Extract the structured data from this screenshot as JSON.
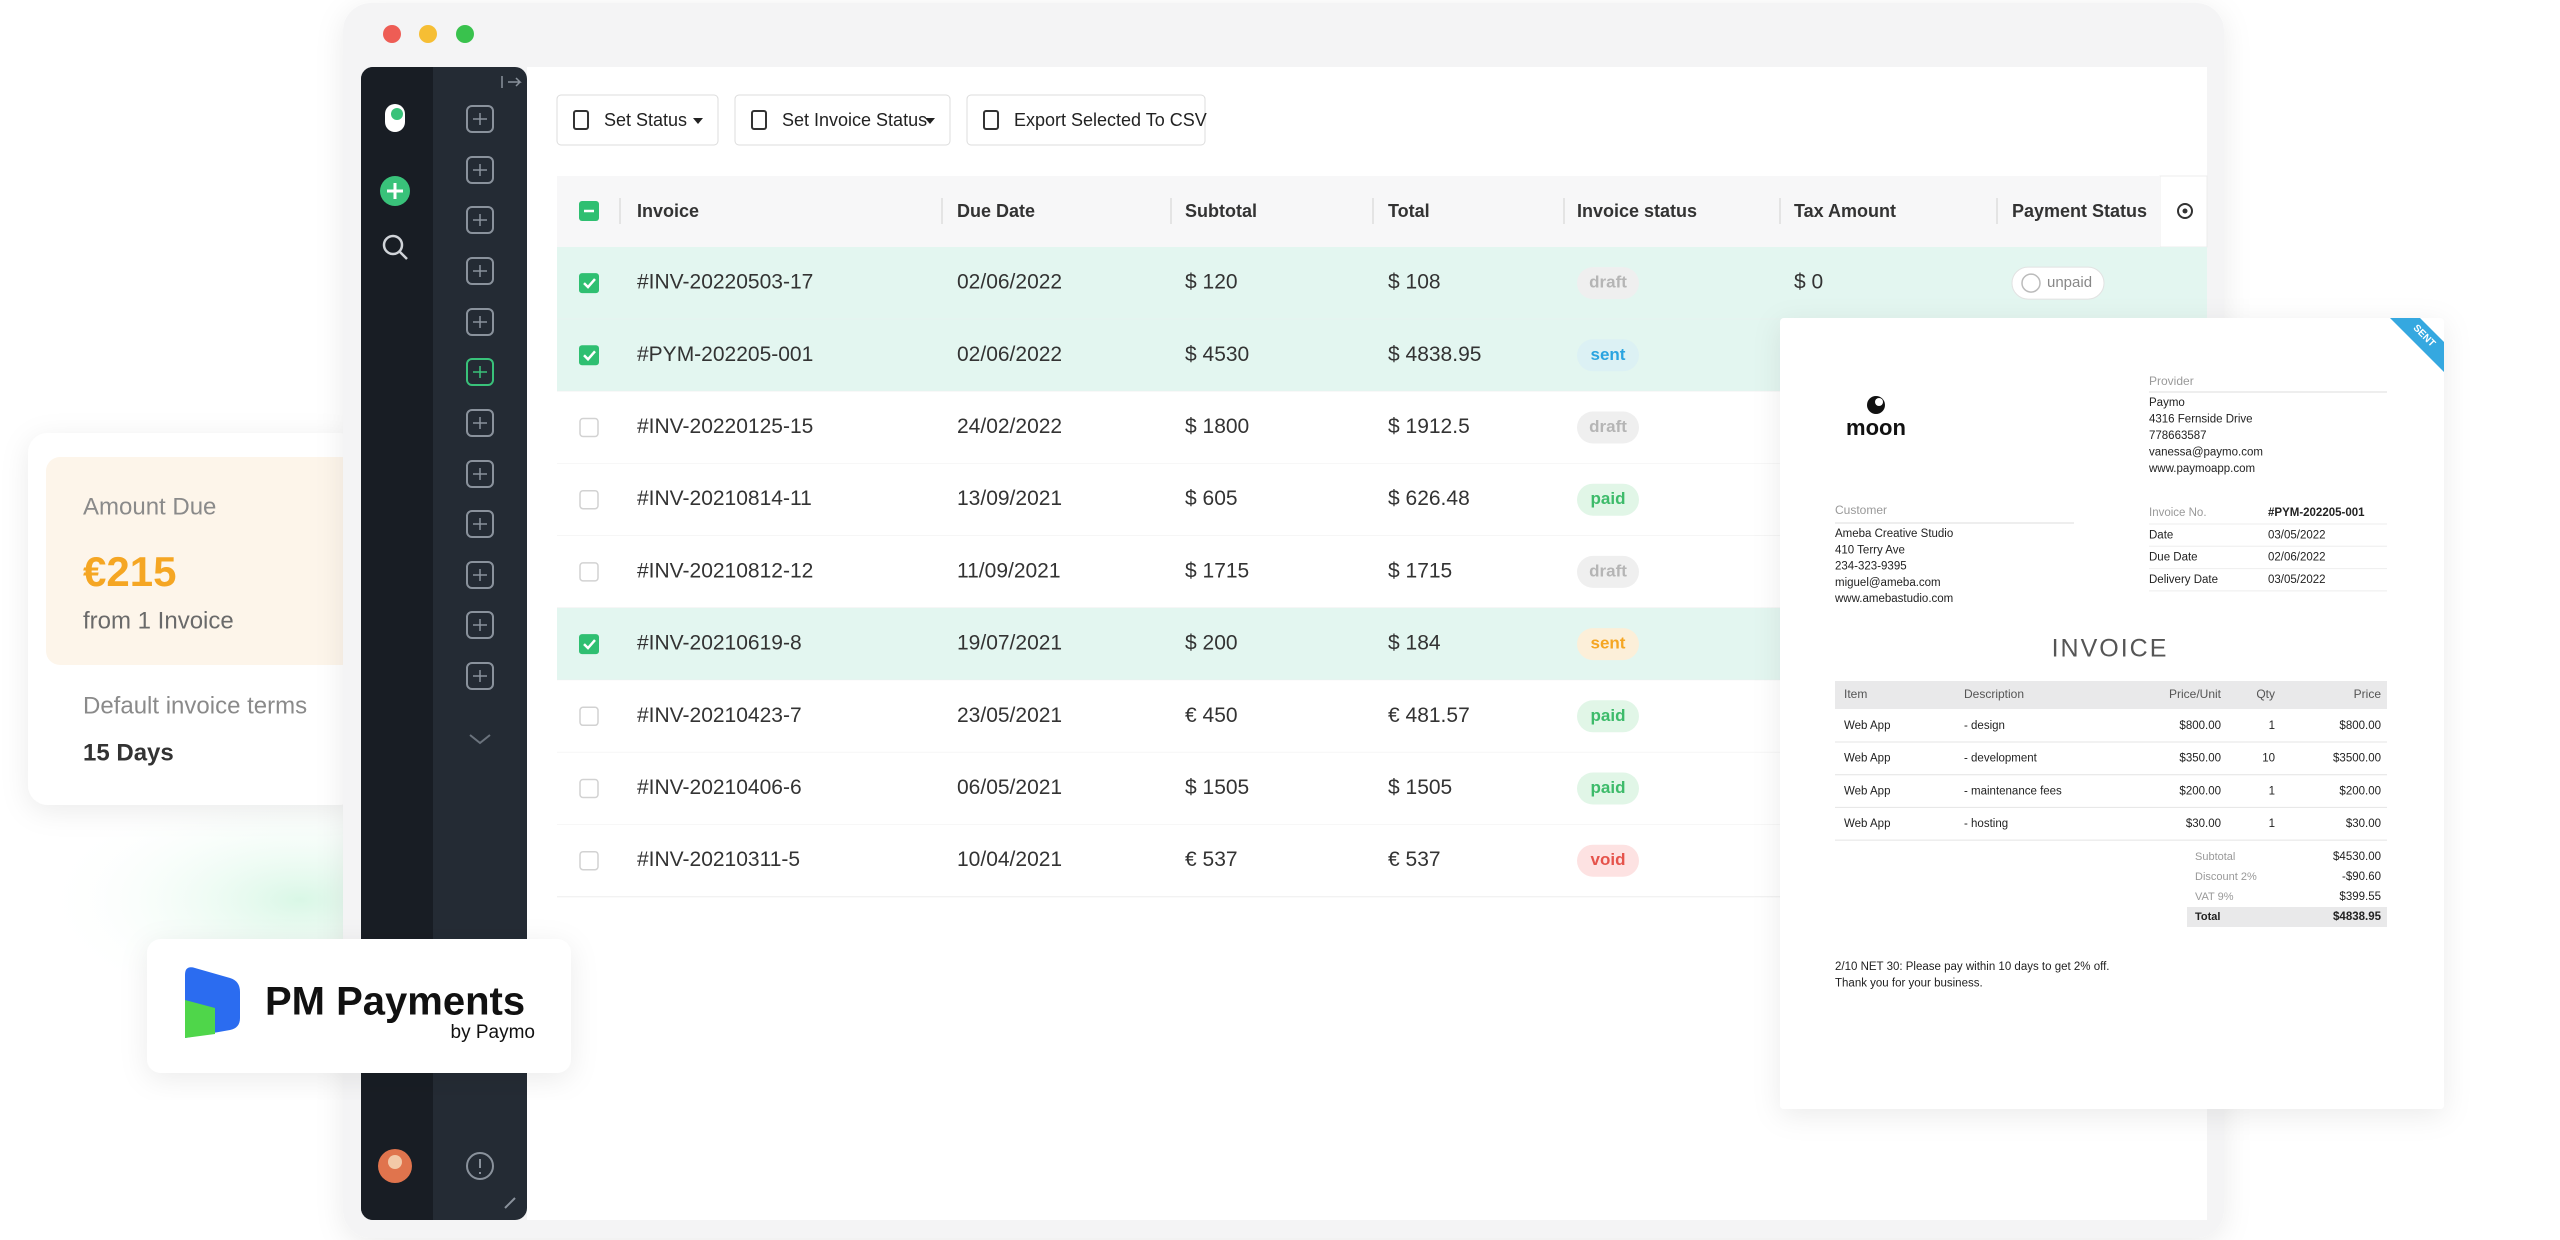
{
  "window": {
    "toolbar": {
      "buttons": [
        "Set Status",
        "Set Invoice Status",
        "Export Selected To CSV"
      ]
    }
  },
  "table": {
    "columns": [
      "Invoice",
      "Due Date",
      "Subtotal",
      "Total",
      "Invoice status",
      "Tax Amount",
      "Payment Status"
    ],
    "rows": [
      {
        "selected": true,
        "invoice": "#INV-20220503-17",
        "due_date": "02/06/2022",
        "subtotal": "$ 120",
        "total": "$ 108",
        "invoice_status": "draft",
        "status_color": "#b5b5b5",
        "status_background": "#efefef",
        "tax_amount": "$ 0",
        "payment_status": "unpaid"
      },
      {
        "selected": true,
        "invoice": "#PYM-202205-001",
        "due_date": "02/06/2022",
        "subtotal": "$ 4530",
        "total": "$ 4838.95",
        "invoice_status": "sent",
        "status_color": "#2aa4e0",
        "status_background": "#dcf1f4"
      },
      {
        "selected": false,
        "invoice": "#INV-20220125-15",
        "due_date": "24/02/2022",
        "subtotal": "$ 1800",
        "total": "$ 1912.5",
        "invoice_status": "draft",
        "status_color": "#b5b5b5",
        "status_background": "#efefef"
      },
      {
        "selected": false,
        "invoice": "#INV-20210814-11",
        "due_date": "13/09/2021",
        "subtotal": "$ 605",
        "total": "$ 626.48",
        "invoice_status": "paid",
        "status_color": "#3dbb6a",
        "status_background": "#e1f6e7"
      },
      {
        "selected": false,
        "invoice": "#INV-20210812-12",
        "due_date": "11/09/2021",
        "subtotal": "$ 1715",
        "total": "$ 1715",
        "invoice_status": "draft",
        "status_color": "#b5b5b5",
        "status_background": "#efefef"
      },
      {
        "selected": true,
        "invoice": "#INV-20210619-8",
        "due_date": "19/07/2021",
        "subtotal": "$ 200",
        "total": "$ 184",
        "invoice_status": "sent",
        "status_color": "#f5a623",
        "status_background": "#fcefd9"
      },
      {
        "selected": false,
        "invoice": "#INV-20210423-7",
        "due_date": "23/05/2021",
        "subtotal": "€ 450",
        "total": "€ 481.57",
        "invoice_status": "paid",
        "status_color": "#3dbb6a",
        "status_background": "#e1f6e7"
      },
      {
        "selected": false,
        "invoice": "#INV-20210406-6",
        "due_date": "06/05/2021",
        "subtotal": "$ 1505",
        "total": "$ 1505",
        "invoice_status": "paid",
        "status_color": "#3dbb6a",
        "status_background": "#e1f6e7"
      },
      {
        "selected": false,
        "invoice": "#INV-20210311-5",
        "due_date": "10/04/2021",
        "subtotal": "€ 537",
        "total": "€ 537",
        "invoice_status": "void",
        "status_color": "#e5534b",
        "status_background": "#fde2e2"
      }
    ]
  },
  "amount_card": {
    "title": "Amount Due",
    "amount": "€215",
    "subtitle": "from 1 Invoice",
    "terms_label": "Default invoice terms",
    "terms_value": "15 Days"
  },
  "brand": {
    "name": "PM Payments",
    "by": "by Paymo"
  },
  "invoice": {
    "ribbon": "SENT",
    "logo": "moon",
    "provider_label": "Provider",
    "provider": [
      "Paymo",
      "4316 Fernside Drive",
      "778663587",
      "vanessa@paymo.com",
      "www.paymoapp.com"
    ],
    "customer_label": "Customer",
    "customer": [
      "Ameba Creative Studio",
      "410 Terry Ave",
      "234-323-9395",
      "miguel@ameba.com",
      "www.amebastudio.com"
    ],
    "details": [
      [
        "Invoice No.",
        "#PYM-202205-001"
      ],
      [
        "Date",
        "03/05/2022"
      ],
      [
        "Due Date",
        "02/06/2022"
      ],
      [
        "Delivery Date",
        "03/05/2022"
      ]
    ],
    "title": "INVOICE",
    "columns": [
      "Item",
      "Description",
      "Price/Unit",
      "Qty",
      "Price"
    ],
    "items": [
      [
        "Web App",
        "- design",
        "$800.00",
        "1",
        "$800.00"
      ],
      [
        "Web App",
        "- development",
        "$350.00",
        "10",
        "$3500.00"
      ],
      [
        "Web App",
        "- maintenance fees",
        "$200.00",
        "1",
        "$200.00"
      ],
      [
        "Web App",
        "- hosting",
        "$30.00",
        "1",
        "$30.00"
      ]
    ],
    "totals": [
      [
        "Subtotal",
        "$4530.00"
      ],
      [
        "Discount 2%",
        "-$90.60"
      ],
      [
        "VAT 9%",
        "$399.55"
      ],
      [
        "Total",
        "$4838.95"
      ]
    ],
    "notes": [
      "2/10 NET 30: Please pay within 10 days to get 2% off.",
      "Thank you for your business."
    ]
  }
}
